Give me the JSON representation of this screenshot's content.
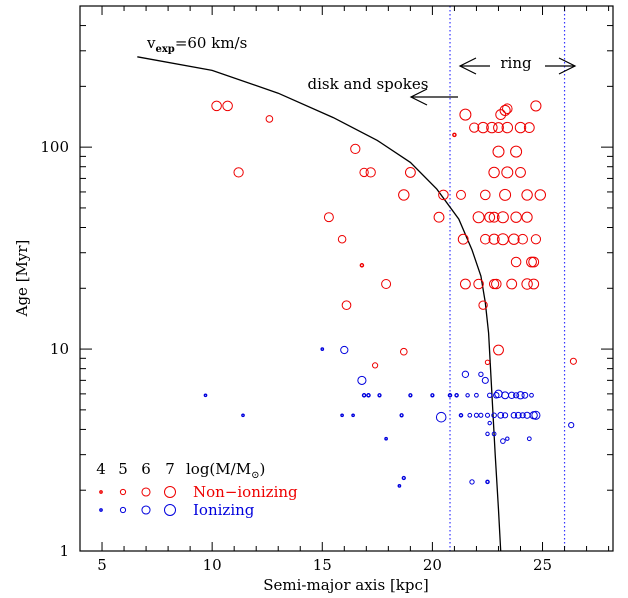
{
  "chart_data": {
    "type": "scatter",
    "title": "",
    "xlabel": "Semi-major axis [kpc]",
    "ylabel": "Age [Myr]",
    "xlim": [
      4,
      28.2
    ],
    "ylim": [
      1,
      500
    ],
    "y_scale": "log",
    "grid": false,
    "x_ticks": [
      "5",
      "10",
      "15",
      "20",
      "25"
    ],
    "y_ticks": [
      "1",
      "10",
      "100"
    ],
    "colors": {
      "non_ionizing": "#ee0000",
      "ionizing": "#0000dd",
      "curve": "#000000",
      "ring_lines": "#3333ff"
    },
    "curve": {
      "label_v": "v",
      "label_sub": "exp",
      "label_rest": "=60 km/s",
      "points": [
        [
          6.6,
          280
        ],
        [
          10,
          240
        ],
        [
          13,
          185
        ],
        [
          15.5,
          140
        ],
        [
          17.5,
          108
        ],
        [
          19,
          84
        ],
        [
          20.2,
          62
        ],
        [
          21.2,
          44
        ],
        [
          21.8,
          31
        ],
        [
          22.2,
          23
        ],
        [
          22.4,
          17
        ],
        [
          22.55,
          12
        ],
        [
          22.7,
          6
        ],
        [
          22.85,
          3
        ],
        [
          23,
          1.6
        ],
        [
          23.1,
          1.0
        ]
      ]
    },
    "ring_lines": [
      20.8,
      26
    ],
    "annotations": {
      "ring": "ring",
      "disk": "disk and spokes"
    },
    "legend": {
      "mass_header": [
        "4",
        "5",
        "6",
        "7"
      ],
      "mass_label_text": "log(M/M",
      "mass_label_sub": "⊙",
      "mass_label_close": ")",
      "non_ionizing_label": "Non−ionizing",
      "ionizing_label": "Ionizing",
      "placement": "bottom-left"
    },
    "series": [
      {
        "name": "Non−ionizing",
        "points": [
          {
            "x": 10.2,
            "y": 160,
            "m": 6.5
          },
          {
            "x": 10.7,
            "y": 160,
            "m": 6.5
          },
          {
            "x": 11.2,
            "y": 75,
            "m": 6.4
          },
          {
            "x": 12.6,
            "y": 138,
            "m": 5.5
          },
          {
            "x": 15.3,
            "y": 45,
            "m": 6.3
          },
          {
            "x": 15.9,
            "y": 35,
            "m": 5.8
          },
          {
            "x": 16.1,
            "y": 16.5,
            "m": 6.2
          },
          {
            "x": 16.5,
            "y": 98,
            "m": 6.4
          },
          {
            "x": 16.9,
            "y": 75,
            "m": 6.1
          },
          {
            "x": 17.2,
            "y": 75,
            "m": 6.4
          },
          {
            "x": 16.8,
            "y": 26,
            "m": 4.3
          },
          {
            "x": 17.4,
            "y": 8.3,
            "m": 5.0
          },
          {
            "x": 17.9,
            "y": 21,
            "m": 6.3
          },
          {
            "x": 18.7,
            "y": 58,
            "m": 6.8
          },
          {
            "x": 18.7,
            "y": 9.7,
            "m": 5.5
          },
          {
            "x": 19.0,
            "y": 75,
            "m": 6.6
          },
          {
            "x": 20.3,
            "y": 45,
            "m": 6.6
          },
          {
            "x": 20.5,
            "y": 58,
            "m": 6.5
          },
          {
            "x": 21.0,
            "y": 115,
            "m": 4.3
          },
          {
            "x": 21.3,
            "y": 58,
            "m": 6.3
          },
          {
            "x": 21.5,
            "y": 145,
            "m": 7.0
          },
          {
            "x": 21.4,
            "y": 35,
            "m": 6.6
          },
          {
            "x": 21.5,
            "y": 21,
            "m": 6.6
          },
          {
            "x": 21.9,
            "y": 125,
            "m": 6.4
          },
          {
            "x": 22.1,
            "y": 45,
            "m": 7.0
          },
          {
            "x": 22.3,
            "y": 125,
            "m": 6.8
          },
          {
            "x": 22.1,
            "y": 21,
            "m": 6.5
          },
          {
            "x": 22.3,
            "y": 16.5,
            "m": 6.1
          },
          {
            "x": 22.4,
            "y": 58,
            "m": 6.5
          },
          {
            "x": 22.4,
            "y": 35,
            "m": 6.5
          },
          {
            "x": 22.6,
            "y": 45,
            "m": 6.6
          },
          {
            "x": 22.5,
            "y": 8.6,
            "m": 4.7
          },
          {
            "x": 22.7,
            "y": 125,
            "m": 6.8
          },
          {
            "x": 22.8,
            "y": 45,
            "m": 6.6
          },
          {
            "x": 22.9,
            "y": 21,
            "m": 6.5
          },
          {
            "x": 22.8,
            "y": 35,
            "m": 6.7
          },
          {
            "x": 22.8,
            "y": 75,
            "m": 6.8
          },
          {
            "x": 23.0,
            "y": 95,
            "m": 7.0
          },
          {
            "x": 23.0,
            "y": 125,
            "m": 6.6
          },
          {
            "x": 23.0,
            "y": 9.9,
            "m": 6.6
          },
          {
            "x": 23.1,
            "y": 145,
            "m": 6.6
          },
          {
            "x": 23.2,
            "y": 45,
            "m": 7.0
          },
          {
            "x": 23.2,
            "y": 35,
            "m": 7.0
          },
          {
            "x": 23.3,
            "y": 58,
            "m": 7.0
          },
          {
            "x": 23.3,
            "y": 152,
            "m": 6.7
          },
          {
            "x": 23.4,
            "y": 125,
            "m": 6.8
          },
          {
            "x": 23.4,
            "y": 75,
            "m": 7.0
          },
          {
            "x": 23.4,
            "y": 155,
            "m": 6.5
          },
          {
            "x": 23.6,
            "y": 21,
            "m": 6.6
          },
          {
            "x": 23.7,
            "y": 35,
            "m": 6.8
          },
          {
            "x": 23.8,
            "y": 95,
            "m": 7.0
          },
          {
            "x": 23.8,
            "y": 45,
            "m": 6.8
          },
          {
            "x": 24.0,
            "y": 125,
            "m": 6.8
          },
          {
            "x": 24.0,
            "y": 75,
            "m": 6.6
          },
          {
            "x": 24.1,
            "y": 35,
            "m": 6.5
          },
          {
            "x": 24.3,
            "y": 58,
            "m": 6.8
          },
          {
            "x": 24.3,
            "y": 45,
            "m": 6.7
          },
          {
            "x": 24.5,
            "y": 27,
            "m": 6.6
          },
          {
            "x": 24.6,
            "y": 27,
            "m": 6.6
          },
          {
            "x": 24.3,
            "y": 21,
            "m": 6.8
          },
          {
            "x": 24.6,
            "y": 21,
            "m": 6.6
          },
          {
            "x": 24.4,
            "y": 125,
            "m": 6.6
          },
          {
            "x": 24.7,
            "y": 160,
            "m": 6.7
          },
          {
            "x": 24.7,
            "y": 35,
            "m": 6.4
          },
          {
            "x": 24.9,
            "y": 58,
            "m": 6.8
          },
          {
            "x": 23.8,
            "y": 27,
            "m": 6.5
          },
          {
            "x": 22.8,
            "y": 21,
            "m": 6.4
          },
          {
            "x": 26.4,
            "y": 8.7,
            "m": 5.3
          }
        ]
      },
      {
        "name": "Ionizing",
        "points": [
          {
            "x": 9.7,
            "y": 5.9,
            "m": 4.0
          },
          {
            "x": 11.4,
            "y": 4.7,
            "m": 4.0
          },
          {
            "x": 15.0,
            "y": 10.0,
            "m": 4.0
          },
          {
            "x": 15.9,
            "y": 4.7,
            "m": 4.0
          },
          {
            "x": 16.0,
            "y": 9.9,
            "m": 5.7
          },
          {
            "x": 16.4,
            "y": 4.7,
            "m": 4.0
          },
          {
            "x": 16.8,
            "y": 7.0,
            "m": 6.0
          },
          {
            "x": 16.9,
            "y": 5.9,
            "m": 4.3
          },
          {
            "x": 17.1,
            "y": 5.9,
            "m": 4.3
          },
          {
            "x": 17.6,
            "y": 5.9,
            "m": 4.2
          },
          {
            "x": 17.9,
            "y": 3.6,
            "m": 4.0
          },
          {
            "x": 18.6,
            "y": 4.7,
            "m": 4.2
          },
          {
            "x": 18.7,
            "y": 2.3,
            "m": 4.2
          },
          {
            "x": 18.5,
            "y": 2.1,
            "m": 4.0
          },
          {
            "x": 19.0,
            "y": 5.9,
            "m": 4.2
          },
          {
            "x": 20.0,
            "y": 5.9,
            "m": 4.2
          },
          {
            "x": 20.4,
            "y": 4.6,
            "m": 6.5
          },
          {
            "x": 20.8,
            "y": 5.9,
            "m": 4.3
          },
          {
            "x": 21.1,
            "y": 5.9,
            "m": 4.3
          },
          {
            "x": 21.3,
            "y": 4.7,
            "m": 4.3
          },
          {
            "x": 21.5,
            "y": 7.5,
            "m": 5.4
          },
          {
            "x": 21.6,
            "y": 5.9,
            "m": 4.4
          },
          {
            "x": 21.7,
            "y": 4.7,
            "m": 4.5
          },
          {
            "x": 22.0,
            "y": 5.9,
            "m": 4.5
          },
          {
            "x": 22.0,
            "y": 4.7,
            "m": 4.6
          },
          {
            "x": 22.2,
            "y": 7.5,
            "m": 4.7
          },
          {
            "x": 22.2,
            "y": 4.7,
            "m": 4.6
          },
          {
            "x": 22.4,
            "y": 7.0,
            "m": 5.3
          },
          {
            "x": 22.5,
            "y": 4.7,
            "m": 4.6
          },
          {
            "x": 22.5,
            "y": 3.8,
            "m": 4.4
          },
          {
            "x": 22.6,
            "y": 5.9,
            "m": 4.7
          },
          {
            "x": 22.6,
            "y": 4.3,
            "m": 4.4
          },
          {
            "x": 22.8,
            "y": 4.7,
            "m": 4.8
          },
          {
            "x": 22.8,
            "y": 3.8,
            "m": 4.5
          },
          {
            "x": 22.9,
            "y": 5.9,
            "m": 5.1
          },
          {
            "x": 23.0,
            "y": 6.0,
            "m": 5.8
          },
          {
            "x": 23.1,
            "y": 4.7,
            "m": 5.2
          },
          {
            "x": 23.2,
            "y": 3.5,
            "m": 4.8
          },
          {
            "x": 23.3,
            "y": 5.9,
            "m": 5.6
          },
          {
            "x": 23.3,
            "y": 4.7,
            "m": 5.0
          },
          {
            "x": 23.4,
            "y": 3.6,
            "m": 4.4
          },
          {
            "x": 23.6,
            "y": 5.9,
            "m": 5.4
          },
          {
            "x": 23.7,
            "y": 4.7,
            "m": 5.1
          },
          {
            "x": 23.8,
            "y": 5.9,
            "m": 5.0
          },
          {
            "x": 23.9,
            "y": 4.7,
            "m": 5.2
          },
          {
            "x": 24.0,
            "y": 5.9,
            "m": 5.7
          },
          {
            "x": 24.1,
            "y": 4.7,
            "m": 5.0
          },
          {
            "x": 24.2,
            "y": 5.9,
            "m": 5.2
          },
          {
            "x": 24.3,
            "y": 4.7,
            "m": 5.3
          },
          {
            "x": 24.4,
            "y": 3.6,
            "m": 4.5
          },
          {
            "x": 24.6,
            "y": 4.7,
            "m": 5.7
          },
          {
            "x": 24.7,
            "y": 4.7,
            "m": 6.0
          },
          {
            "x": 24.5,
            "y": 5.9,
            "m": 4.5
          },
          {
            "x": 22.5,
            "y": 2.2,
            "m": 4.3
          },
          {
            "x": 21.8,
            "y": 2.2,
            "m": 4.7
          },
          {
            "x": 26.3,
            "y": 4.2,
            "m": 5.0
          }
        ]
      }
    ]
  }
}
